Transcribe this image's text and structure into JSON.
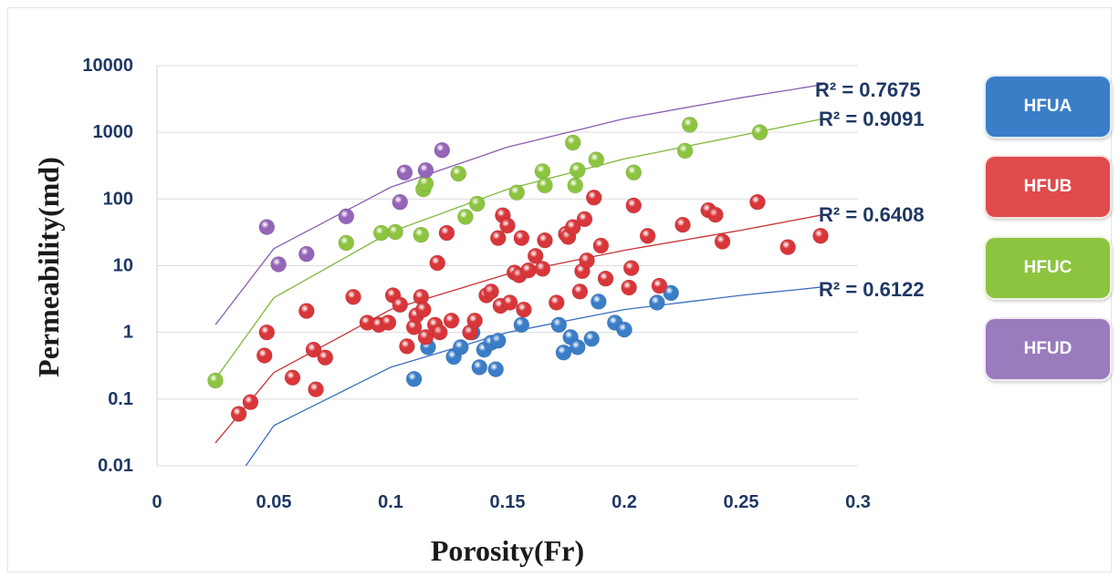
{
  "chart_data": {
    "type": "scatter",
    "xlabel": "Porosity(Fr)",
    "ylabel": "Permeability(md)",
    "xlim": [
      0,
      0.3
    ],
    "ylim": [
      0.01,
      10000
    ],
    "y_scale": "log",
    "grid": "horizontal",
    "legend_position": "right",
    "x_ticks": [
      "0",
      "0.05",
      "0.1",
      "0.15",
      "0.2",
      "0.25",
      "0.3"
    ],
    "y_ticks": [
      "0.01",
      "0.1",
      "1",
      "10",
      "100",
      "1000",
      "10000"
    ],
    "series": [
      {
        "name": "HFUA",
        "color": "#3a7ec8",
        "trend": {
          "label": "R² = 0.6122",
          "points": [
            [
              0.038,
              0.01
            ],
            [
              0.05,
              0.04
            ],
            [
              0.1,
              0.3
            ],
            [
              0.15,
              1.0
            ],
            [
              0.2,
              2.2
            ],
            [
              0.25,
              3.6
            ],
            [
              0.285,
              4.8
            ]
          ]
        },
        "points": [
          [
            0.11,
            0.2
          ],
          [
            0.116,
            0.6
          ],
          [
            0.127,
            0.43
          ],
          [
            0.13,
            0.6
          ],
          [
            0.135,
            1.0
          ],
          [
            0.138,
            0.3
          ],
          [
            0.14,
            0.55
          ],
          [
            0.143,
            0.7
          ],
          [
            0.145,
            0.28
          ],
          [
            0.146,
            0.75
          ],
          [
            0.156,
            1.3
          ],
          [
            0.172,
            1.3
          ],
          [
            0.174,
            0.5
          ],
          [
            0.177,
            0.85
          ],
          [
            0.18,
            0.6
          ],
          [
            0.186,
            0.8
          ],
          [
            0.189,
            2.9
          ],
          [
            0.196,
            1.4
          ],
          [
            0.2,
            1.1
          ],
          [
            0.214,
            2.8
          ],
          [
            0.22,
            3.9
          ]
        ]
      },
      {
        "name": "HFUB",
        "color": "#d9363a",
        "trend": {
          "label": "R² = 0.6408",
          "points": [
            [
              0.025,
              0.022
            ],
            [
              0.05,
              0.25
            ],
            [
              0.1,
              2.2
            ],
            [
              0.15,
              7.5
            ],
            [
              0.2,
              17
            ],
            [
              0.25,
              34
            ],
            [
              0.285,
              58
            ]
          ]
        },
        "points": [
          [
            0.035,
            0.06
          ],
          [
            0.04,
            0.09
          ],
          [
            0.046,
            0.45
          ],
          [
            0.047,
            1.0
          ],
          [
            0.058,
            0.21
          ],
          [
            0.064,
            2.1
          ],
          [
            0.067,
            0.55
          ],
          [
            0.068,
            0.14
          ],
          [
            0.072,
            0.42
          ],
          [
            0.084,
            3.4
          ],
          [
            0.09,
            1.4
          ],
          [
            0.095,
            1.3
          ],
          [
            0.099,
            1.4
          ],
          [
            0.101,
            3.6
          ],
          [
            0.104,
            2.6
          ],
          [
            0.107,
            0.62
          ],
          [
            0.11,
            1.2
          ],
          [
            0.111,
            1.8
          ],
          [
            0.113,
            3.4
          ],
          [
            0.114,
            2.2
          ],
          [
            0.115,
            0.85
          ],
          [
            0.119,
            1.3
          ],
          [
            0.12,
            11
          ],
          [
            0.121,
            1.0
          ],
          [
            0.124,
            31
          ],
          [
            0.126,
            1.5
          ],
          [
            0.134,
            1.0
          ],
          [
            0.136,
            1.5
          ],
          [
            0.141,
            3.6
          ],
          [
            0.143,
            4.1
          ],
          [
            0.146,
            26
          ],
          [
            0.147,
            2.5
          ],
          [
            0.148,
            57
          ],
          [
            0.15,
            40
          ],
          [
            0.151,
            2.8
          ],
          [
            0.153,
            7.9
          ],
          [
            0.155,
            7.2
          ],
          [
            0.156,
            26
          ],
          [
            0.157,
            2.2
          ],
          [
            0.159,
            8.5
          ],
          [
            0.162,
            14
          ],
          [
            0.165,
            9.0
          ],
          [
            0.166,
            24
          ],
          [
            0.171,
            2.8
          ],
          [
            0.175,
            30
          ],
          [
            0.176,
            27
          ],
          [
            0.178,
            38
          ],
          [
            0.181,
            4.1
          ],
          [
            0.182,
            8.3
          ],
          [
            0.183,
            50
          ],
          [
            0.184,
            12
          ],
          [
            0.187,
            105
          ],
          [
            0.19,
            20
          ],
          [
            0.192,
            6.4
          ],
          [
            0.202,
            4.7
          ],
          [
            0.203,
            9.2
          ],
          [
            0.204,
            80
          ],
          [
            0.21,
            28
          ],
          [
            0.215,
            5.0
          ],
          [
            0.225,
            41
          ],
          [
            0.236,
            68
          ],
          [
            0.239,
            58
          ],
          [
            0.242,
            23
          ],
          [
            0.257,
            90
          ],
          [
            0.27,
            19
          ],
          [
            0.284,
            28
          ]
        ]
      },
      {
        "name": "HFUC",
        "color": "#8cc43f",
        "trend": {
          "label": "R² = 0.9091",
          "points": [
            [
              0.025,
              0.2
            ],
            [
              0.05,
              3.3
            ],
            [
              0.1,
              32
            ],
            [
              0.15,
              140
            ],
            [
              0.2,
              400
            ],
            [
              0.25,
              900
            ],
            [
              0.285,
              1600
            ]
          ]
        },
        "points": [
          [
            0.025,
            0.19
          ],
          [
            0.081,
            22
          ],
          [
            0.096,
            31
          ],
          [
            0.102,
            32
          ],
          [
            0.113,
            29
          ],
          [
            0.114,
            140
          ],
          [
            0.115,
            170
          ],
          [
            0.129,
            240
          ],
          [
            0.132,
            54
          ],
          [
            0.137,
            85
          ],
          [
            0.154,
            125
          ],
          [
            0.165,
            260
          ],
          [
            0.166,
            160
          ],
          [
            0.178,
            700
          ],
          [
            0.179,
            160
          ],
          [
            0.18,
            270
          ],
          [
            0.188,
            390
          ],
          [
            0.204,
            250
          ],
          [
            0.226,
            530
          ],
          [
            0.228,
            1300
          ],
          [
            0.258,
            1000
          ]
        ]
      },
      {
        "name": "HFUD",
        "color": "#9465b8",
        "trend": {
          "label": "R² = 0.7675",
          "points": [
            [
              0.025,
              1.3
            ],
            [
              0.05,
              18
            ],
            [
              0.1,
              150
            ],
            [
              0.15,
              600
            ],
            [
              0.2,
              1600
            ],
            [
              0.25,
              3300
            ],
            [
              0.285,
              5200
            ]
          ]
        },
        "points": [
          [
            0.047,
            38
          ],
          [
            0.052,
            10.5
          ],
          [
            0.064,
            15
          ],
          [
            0.081,
            55
          ],
          [
            0.104,
            90
          ],
          [
            0.106,
            250
          ],
          [
            0.115,
            270
          ],
          [
            0.122,
            540
          ]
        ]
      }
    ]
  }
}
